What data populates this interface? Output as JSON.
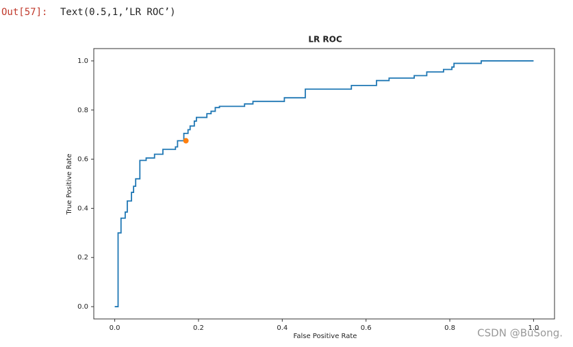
{
  "prompt": "Out[57]:",
  "output_text": "Text(0.5,1,’LR ROC’)",
  "watermark": "CSDN @BuSong.",
  "chart_data": {
    "type": "line",
    "title": "LR ROC",
    "xlabel": "False Positive Rate",
    "ylabel": "True Positive Rate",
    "xlim": [
      -0.05,
      1.05
    ],
    "ylim": [
      -0.05,
      1.05
    ],
    "xticks": [
      {
        "value": 0,
        "label": "0.0"
      },
      {
        "value": 0.2,
        "label": "0.2"
      },
      {
        "value": 0.4,
        "label": "0.4"
      },
      {
        "value": 0.6,
        "label": "0.6"
      },
      {
        "value": 0.8,
        "label": "0.8"
      },
      {
        "value": 1,
        "label": "1.0"
      }
    ],
    "yticks": [
      {
        "value": 0,
        "label": "0.0"
      },
      {
        "value": 0.2,
        "label": "0.2"
      },
      {
        "value": 0.4,
        "label": "0.4"
      },
      {
        "value": 0.6,
        "label": "0.6"
      },
      {
        "value": 0.8,
        "label": "0.8"
      },
      {
        "value": 1,
        "label": "1.0"
      }
    ],
    "series": [
      {
        "color": "#1f77b4",
        "x": [
          0,
          0.008,
          0.008,
          0.015,
          0.015,
          0.025,
          0.025,
          0.03,
          0.03,
          0.04,
          0.04,
          0.045,
          0.045,
          0.05,
          0.05,
          0.06,
          0.06,
          0.075,
          0.075,
          0.095,
          0.095,
          0.115,
          0.115,
          0.145,
          0.145,
          0.15,
          0.15,
          0.165,
          0.165,
          0.175,
          0.175,
          0.18,
          0.18,
          0.19,
          0.19,
          0.195,
          0.195,
          0.22,
          0.22,
          0.23,
          0.23,
          0.24,
          0.24,
          0.25,
          0.25,
          0.31,
          0.31,
          0.33,
          0.33,
          0.405,
          0.405,
          0.455,
          0.455,
          0.565,
          0.565,
          0.625,
          0.625,
          0.655,
          0.655,
          0.715,
          0.715,
          0.745,
          0.745,
          0.785,
          0.785,
          0.805,
          0.805,
          0.81,
          0.81,
          0.875,
          0.875,
          1.0
        ],
        "values": [
          0,
          0,
          0.3,
          0.3,
          0.36,
          0.36,
          0.385,
          0.385,
          0.43,
          0.43,
          0.465,
          0.465,
          0.49,
          0.49,
          0.52,
          0.52,
          0.595,
          0.595,
          0.605,
          0.605,
          0.62,
          0.62,
          0.64,
          0.64,
          0.65,
          0.65,
          0.675,
          0.675,
          0.705,
          0.705,
          0.72,
          0.72,
          0.735,
          0.735,
          0.755,
          0.755,
          0.77,
          0.77,
          0.785,
          0.785,
          0.795,
          0.795,
          0.81,
          0.81,
          0.815,
          0.815,
          0.825,
          0.825,
          0.835,
          0.835,
          0.85,
          0.85,
          0.885,
          0.885,
          0.9,
          0.9,
          0.92,
          0.92,
          0.93,
          0.93,
          0.94,
          0.94,
          0.955,
          0.955,
          0.965,
          0.965,
          0.975,
          0.975,
          0.99,
          0.99,
          1.0,
          1.0
        ]
      },
      {
        "type": "scatter",
        "color": "#ff7f0e",
        "x": [
          0.17
        ],
        "values": [
          0.675
        ]
      }
    ]
  }
}
